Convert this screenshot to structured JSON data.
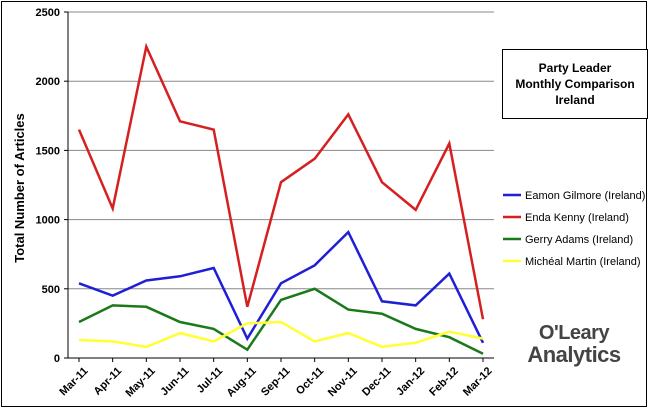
{
  "chart_data": {
    "type": "line",
    "title": [
      "Party Leader",
      "Monthly Comparison",
      "Ireland"
    ],
    "ylabel": "Total Number of Articles",
    "xlabel": "",
    "ylim": [
      0,
      2500
    ],
    "yticks": [
      0,
      500,
      1000,
      1500,
      2000,
      2500
    ],
    "grid": true,
    "legend_position": "right",
    "categories": [
      "Mar-11",
      "Apr-11",
      "May-11",
      "Jun-11",
      "Jul-11",
      "Aug-11",
      "Sep-11",
      "Oct-11",
      "Nov-11",
      "Dec-11",
      "Jan-12",
      "Feb-12",
      "Mar-12"
    ],
    "series": [
      {
        "name": "Eamon Gilmore (Ireland)",
        "color": "#1f1fd6",
        "values": [
          540,
          450,
          560,
          590,
          650,
          140,
          540,
          670,
          910,
          410,
          380,
          610,
          110
        ]
      },
      {
        "name": "Enda Kenny (Ireland)",
        "color": "#d62020",
        "values": [
          1650,
          1080,
          2250,
          1710,
          1650,
          370,
          1270,
          1440,
          1760,
          1270,
          1070,
          1550,
          280
        ]
      },
      {
        "name": "Gerry Adams (Ireland)",
        "color": "#1a7a1a",
        "values": [
          260,
          380,
          370,
          260,
          210,
          60,
          420,
          500,
          350,
          320,
          210,
          150,
          30
        ]
      },
      {
        "name": "Michéal Martin (Ireland)",
        "color": "#ffff33",
        "values": [
          130,
          120,
          80,
          180,
          120,
          250,
          260,
          120,
          180,
          80,
          110,
          190,
          140
        ]
      }
    ]
  },
  "watermark": {
    "line1": "O'Leary",
    "line2": "Analytics"
  }
}
